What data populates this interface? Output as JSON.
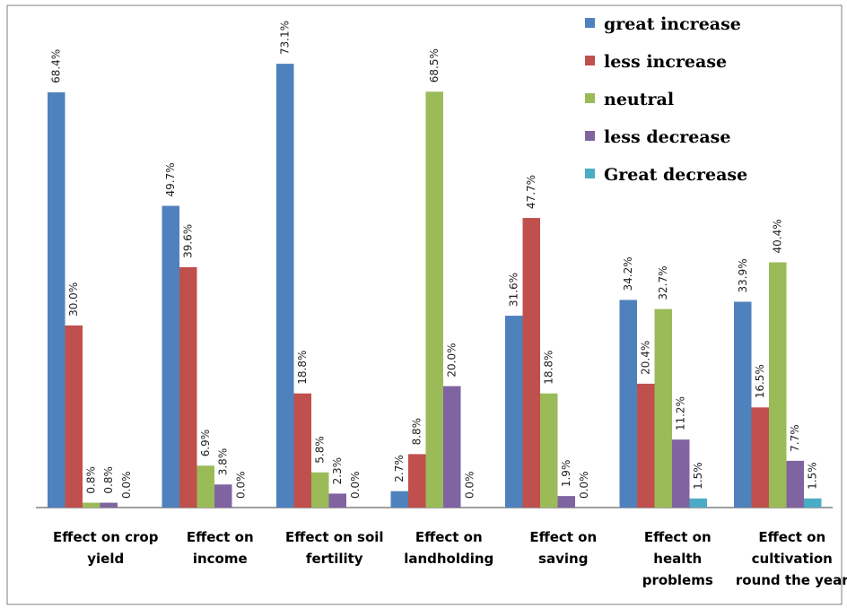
{
  "chart_data": {
    "type": "bar",
    "categories": [
      [
        "Effect on crop",
        "yield"
      ],
      [
        "Effect on",
        "income"
      ],
      [
        "Effect on  soil",
        "fertility"
      ],
      [
        "Effect on",
        "landholding"
      ],
      [
        "Effect on",
        "saving"
      ],
      [
        "Effect on",
        "health",
        "problems"
      ],
      [
        "Effect on",
        "cultivation",
        "round the year"
      ]
    ],
    "series": [
      {
        "name": "great increase",
        "color": "#4F81BD",
        "values": [
          68.4,
          49.7,
          73.1,
          2.7,
          31.6,
          34.2,
          33.9
        ]
      },
      {
        "name": "less increase",
        "color": "#C0504D",
        "values": [
          30.0,
          39.6,
          18.8,
          8.8,
          47.7,
          20.4,
          16.5
        ]
      },
      {
        "name": "neutral",
        "color": "#9BBB59",
        "values": [
          0.8,
          6.9,
          5.8,
          68.5,
          18.8,
          32.7,
          40.4
        ]
      },
      {
        "name": "less decrease",
        "color": "#8064A2",
        "values": [
          0.8,
          3.8,
          2.3,
          20.0,
          1.9,
          11.2,
          7.7
        ]
      },
      {
        "name": "Great decrease",
        "color": "#4BACC6",
        "values": [
          0.0,
          0.0,
          0.0,
          0.0,
          0.0,
          1.5,
          1.5
        ]
      }
    ],
    "value_labels": [
      [
        "68.4%",
        "30.0%",
        "0.8%",
        "0.8%",
        "0.0%"
      ],
      [
        "49.7%",
        "39.6%",
        "6.9%",
        "3.8%",
        "0.0%"
      ],
      [
        "73.1%",
        "18.8%",
        "5.8%",
        "2.3%",
        "0.0%"
      ],
      [
        "2.7%",
        "8.8%",
        "68.5%",
        "20.0%",
        "0.0%"
      ],
      [
        "31.6%",
        "47.7%",
        "18.8%",
        "1.9%",
        "0.0%"
      ],
      [
        "34.2%",
        "20.4%",
        "32.7%",
        "11.2%",
        "1.5%"
      ],
      [
        "33.9%",
        "16.5%",
        "40.4%",
        "7.7%",
        "1.5%"
      ]
    ],
    "ylim": [
      0,
      80
    ],
    "grid": false,
    "legend_position": "top-right",
    "title": "",
    "xlabel": "",
    "ylabel": ""
  }
}
